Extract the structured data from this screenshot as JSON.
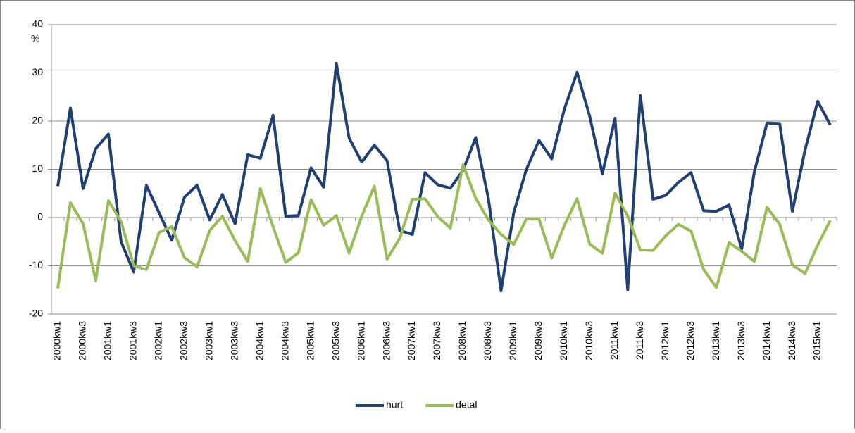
{
  "chart_data": {
    "type": "line",
    "categories": [
      "2000kw1",
      null,
      "2000kw3",
      null,
      "2001kw1",
      null,
      "2001kw3",
      null,
      "2002kw1",
      null,
      "2002kw3",
      null,
      "2003kw1",
      null,
      "2003kw3",
      null,
      "2004kw1",
      null,
      "2004kw3",
      null,
      "2005kw1",
      null,
      "2005kw3",
      null,
      "2006kw1",
      null,
      "2006kw3",
      null,
      "2007kw1",
      null,
      "2007kw3",
      null,
      "2008kw1",
      null,
      "2008kw3",
      null,
      "2009kw1",
      null,
      "2009kw3",
      null,
      "2010kw1",
      null,
      "2010kw3",
      null,
      "2011kw1",
      null,
      "2011kw3",
      null,
      "2012kw1",
      null,
      "2012kw3",
      null,
      "2013kw1",
      null,
      "2013kw3",
      null,
      "2014kw1",
      null,
      "2014kw3",
      null,
      "2015kw1",
      null
    ],
    "series": [
      {
        "name": "hurt",
        "color": "#203f73",
        "values": [
          6.5,
          22.7,
          6,
          14.3,
          17.3,
          -5,
          -11.3,
          6.7,
          1,
          -4.7,
          4.2,
          6.7,
          -0.5,
          4.8,
          -1.3,
          13,
          12.3,
          21.2,
          0.3,
          0.4,
          10.3,
          6.3,
          32,
          16.5,
          11.5,
          15,
          11.8,
          -2.7,
          -3.5,
          9.3,
          6.8,
          6.1,
          9.8,
          16.6,
          4,
          -15.2,
          1,
          10,
          16,
          12.2,
          22.5,
          30.1,
          21,
          9.1,
          20.6,
          -15,
          25.3,
          3.8,
          4.6,
          7.3,
          9.3,
          1.4,
          1.3,
          2.6,
          -6.5,
          9.5,
          19.6,
          19.5,
          1.3,
          14,
          24.1,
          19.2
        ]
      },
      {
        "name": "detal",
        "color": "#9bbb59",
        "values": [
          -14.7,
          3.1,
          -1.3,
          -13.1,
          3.5,
          -0.8,
          -10,
          -10.8,
          -3.1,
          -1.9,
          -8.3,
          -10.2,
          -2.7,
          0.3,
          -4.8,
          -9.1,
          6,
          -1.9,
          -9.3,
          -7.3,
          3.7,
          -1.6,
          0.4,
          -7.4,
          0.3,
          6.5,
          -8.6,
          -4.3,
          3.8,
          3.9,
          0.2,
          -2.2,
          10.9,
          4,
          -0.5,
          -3.5,
          -5.6,
          -0.3,
          -0.3,
          -8.4,
          -1.6,
          3.9,
          -5.5,
          -7.4,
          5.1,
          0.3,
          -6.7,
          -6.8,
          -3.8,
          -1.4,
          -2.8,
          -10.8,
          -14.5,
          -5.2,
          -7,
          -9.1,
          2.1,
          -1.4,
          -9.8,
          -11.6,
          -5.7,
          -0.6
        ]
      }
    ],
    "y_label": "%",
    "ylim": [
      -20,
      40
    ],
    "yticks": [
      -20,
      -10,
      0,
      10,
      20,
      30,
      40
    ],
    "grid": true,
    "legend": "bottom"
  }
}
